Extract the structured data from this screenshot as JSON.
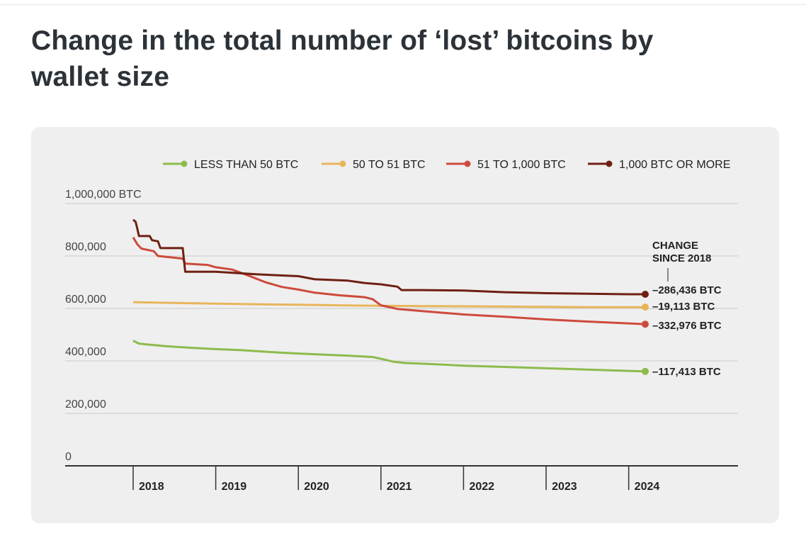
{
  "page": {
    "title": "Change in the total number of ‘lost’ bitcoins by wallet size"
  },
  "chart_data": {
    "type": "line",
    "title": "Change in the total number of ‘lost’ bitcoins by wallet size",
    "xlabel": "",
    "ylabel": "",
    "y_top_label": "1,000,000 BTC",
    "y_ticks": [
      0,
      200000,
      400000,
      600000,
      800000,
      1000000
    ],
    "y_tick_labels": [
      "0",
      "200,000",
      "400,000",
      "600,000",
      "800,000",
      "1,000,000 BTC"
    ],
    "ylim": [
      0,
      1000000
    ],
    "xlim": [
      2018,
      2024.2
    ],
    "x_ticks": [
      2018,
      2019,
      2020,
      2021,
      2022,
      2023,
      2024
    ],
    "x_tick_labels": [
      "2018",
      "2019",
      "2020",
      "2021",
      "2022",
      "2023",
      "2024"
    ],
    "grid": "horizontal",
    "legend_position": "top",
    "annotation_header": [
      "CHANGE",
      "SINCE 2018"
    ],
    "series": [
      {
        "name": "LESS THAN 50 BTC",
        "color": "#8dbb4c",
        "end_label": "–117,413 BTC",
        "points": [
          [
            2018.0,
            477000
          ],
          [
            2018.07,
            466000
          ],
          [
            2018.2,
            462000
          ],
          [
            2018.4,
            456000
          ],
          [
            2018.7,
            450000
          ],
          [
            2019.0,
            445000
          ],
          [
            2019.3,
            441000
          ],
          [
            2019.7,
            433000
          ],
          [
            2020.0,
            428000
          ],
          [
            2020.3,
            424000
          ],
          [
            2020.6,
            420000
          ],
          [
            2020.9,
            415000
          ],
          [
            2021.0,
            408000
          ],
          [
            2021.15,
            397000
          ],
          [
            2021.3,
            392000
          ],
          [
            2021.6,
            388000
          ],
          [
            2022.0,
            382000
          ],
          [
            2022.5,
            377000
          ],
          [
            2023.0,
            372000
          ],
          [
            2023.5,
            367000
          ],
          [
            2024.0,
            362000
          ],
          [
            2024.2,
            360000
          ]
        ]
      },
      {
        "name": "50 TO 51 BTC",
        "color": "#e8b55a",
        "end_label": "–19,113 BTC",
        "points": [
          [
            2018.0,
            624000
          ],
          [
            2018.5,
            621000
          ],
          [
            2019.0,
            618000
          ],
          [
            2019.5,
            616000
          ],
          [
            2020.0,
            614000
          ],
          [
            2020.5,
            612000
          ],
          [
            2021.0,
            610000
          ],
          [
            2021.5,
            609000
          ],
          [
            2022.0,
            608000
          ],
          [
            2022.5,
            607000
          ],
          [
            2023.0,
            606000
          ],
          [
            2023.5,
            605000
          ],
          [
            2024.0,
            605000
          ],
          [
            2024.2,
            605000
          ]
        ]
      },
      {
        "name": "51 TO 1,000 BTC",
        "color": "#cd4a3d",
        "end_label": "–332,976 BTC",
        "points": [
          [
            2018.0,
            871000
          ],
          [
            2018.05,
            845000
          ],
          [
            2018.1,
            828000
          ],
          [
            2018.25,
            818000
          ],
          [
            2018.3,
            800000
          ],
          [
            2018.6,
            790000
          ],
          [
            2018.63,
            771000
          ],
          [
            2018.9,
            766000
          ],
          [
            2019.0,
            757000
          ],
          [
            2019.2,
            748000
          ],
          [
            2019.4,
            725000
          ],
          [
            2019.6,
            700000
          ],
          [
            2019.8,
            682000
          ],
          [
            2020.0,
            672000
          ],
          [
            2020.2,
            660000
          ],
          [
            2020.5,
            650000
          ],
          [
            2020.8,
            643000
          ],
          [
            2020.9,
            635000
          ],
          [
            2021.0,
            612000
          ],
          [
            2021.2,
            598000
          ],
          [
            2021.5,
            590000
          ],
          [
            2022.0,
            577000
          ],
          [
            2022.5,
            568000
          ],
          [
            2023.0,
            558000
          ],
          [
            2023.5,
            550000
          ],
          [
            2024.0,
            543000
          ],
          [
            2024.2,
            540000
          ]
        ]
      },
      {
        "name": "1,000 BTC OR MORE",
        "color": "#6e2013",
        "end_label": "–286,436 BTC",
        "points": [
          [
            2018.0,
            938000
          ],
          [
            2018.03,
            930000
          ],
          [
            2018.05,
            905000
          ],
          [
            2018.07,
            876000
          ],
          [
            2018.2,
            876000
          ],
          [
            2018.23,
            860000
          ],
          [
            2018.3,
            856000
          ],
          [
            2018.33,
            830000
          ],
          [
            2018.6,
            830000
          ],
          [
            2018.63,
            740000
          ],
          [
            2019.0,
            740000
          ],
          [
            2019.5,
            730000
          ],
          [
            2020.0,
            723000
          ],
          [
            2020.2,
            711000
          ],
          [
            2020.6,
            706000
          ],
          [
            2020.8,
            697000
          ],
          [
            2021.0,
            692000
          ],
          [
            2021.2,
            683000
          ],
          [
            2021.25,
            670000
          ],
          [
            2021.5,
            670000
          ],
          [
            2021.8,
            669000
          ],
          [
            2022.0,
            668000
          ],
          [
            2022.5,
            662000
          ],
          [
            2023.0,
            658000
          ],
          [
            2023.5,
            656000
          ],
          [
            2024.0,
            654000
          ],
          [
            2024.2,
            654000
          ]
        ]
      }
    ]
  }
}
